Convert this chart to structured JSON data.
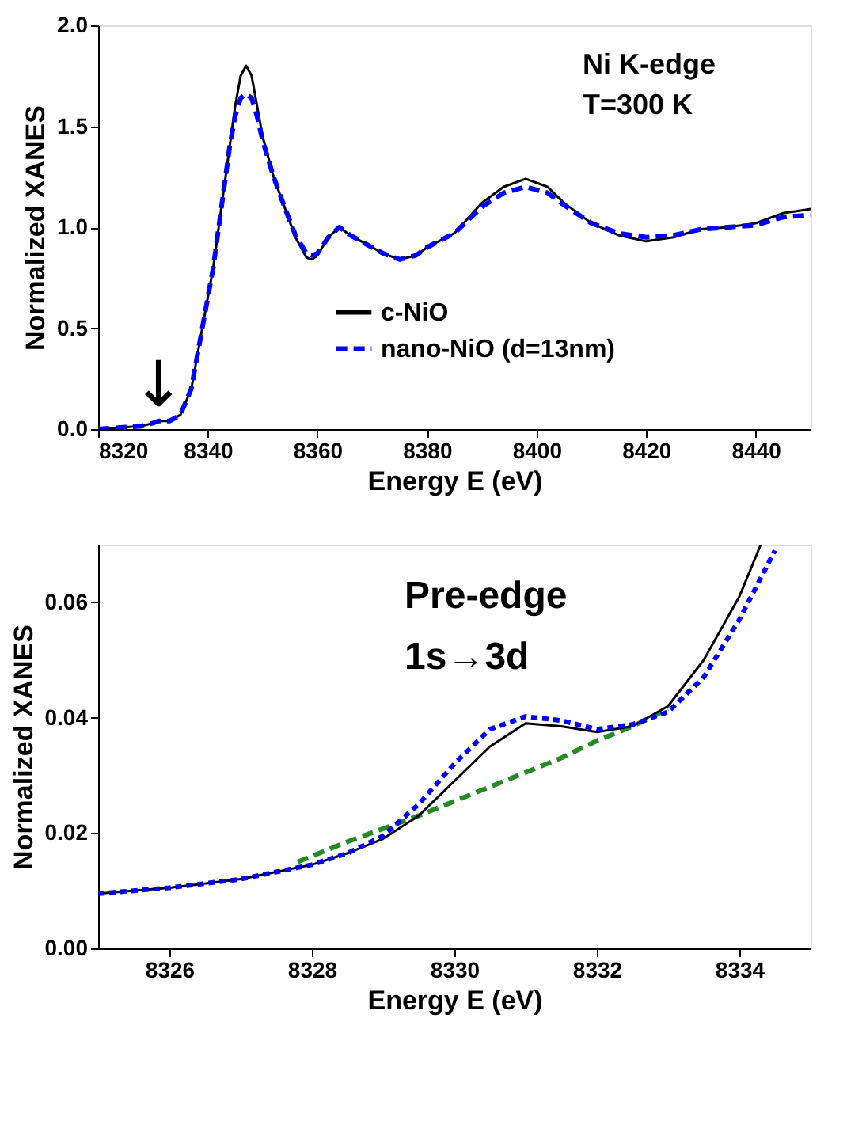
{
  "chart_data": [
    {
      "type": "line",
      "xlabel": "Energy E (eV)",
      "ylabel": "Normalized XANES",
      "xlim": [
        8320,
        8450
      ],
      "ylim": [
        0,
        2.0
      ],
      "xticks": [
        8320,
        8340,
        8360,
        8380,
        8400,
        8420,
        8440
      ],
      "yticks": [
        {
          "value": 0,
          "label": "0.0"
        },
        0.5,
        {
          "value": 1,
          "label": "1.0"
        },
        1.5,
        {
          "value": 2,
          "label": "2.0"
        }
      ],
      "grid": false,
      "legend": "bottom right",
      "annotations": [
        "Ni K-edge",
        "T=300 K",
        {
          "text": "↓",
          "x": 8331,
          "y": 0.05
        }
      ],
      "series": [
        {
          "name": "c-NiO",
          "color": "#000000",
          "line_style": "solid",
          "x": [
            8320,
            8325,
            8328,
            8330,
            8331,
            8333,
            8335,
            8337,
            8339,
            8341,
            8343,
            8344,
            8345,
            8346,
            8347,
            8348,
            8349,
            8350,
            8352,
            8354,
            8356,
            8358,
            8359,
            8360,
            8362,
            8364,
            8366,
            8368,
            8372,
            8375,
            8378,
            8380,
            8385,
            8390,
            8394,
            8398,
            8402,
            8405,
            8410,
            8415,
            8420,
            8425,
            8430,
            8435,
            8440,
            8445,
            8450
          ],
          "values": [
            0.0,
            0.01,
            0.015,
            0.03,
            0.04,
            0.04,
            0.07,
            0.2,
            0.5,
            0.8,
            1.2,
            1.4,
            1.6,
            1.75,
            1.8,
            1.75,
            1.6,
            1.45,
            1.25,
            1.1,
            0.95,
            0.85,
            0.84,
            0.86,
            0.95,
            1.0,
            0.96,
            0.93,
            0.87,
            0.84,
            0.86,
            0.9,
            0.97,
            1.12,
            1.2,
            1.24,
            1.2,
            1.12,
            1.02,
            0.96,
            0.93,
            0.95,
            0.99,
            1.0,
            1.02,
            1.07,
            1.09
          ]
        },
        {
          "name": "nano-NiO (d=13nm)",
          "color": "#0000ff",
          "line_style": "dashed",
          "x": [
            8320,
            8325,
            8328,
            8330,
            8331,
            8333,
            8335,
            8337,
            8339,
            8341,
            8343,
            8344,
            8345,
            8346,
            8347,
            8348,
            8349,
            8350,
            8352,
            8354,
            8356,
            8358,
            8359,
            8360,
            8362,
            8364,
            8366,
            8368,
            8372,
            8375,
            8378,
            8380,
            8385,
            8390,
            8394,
            8398,
            8402,
            8405,
            8410,
            8415,
            8420,
            8425,
            8430,
            8435,
            8440,
            8445,
            8450
          ],
          "values": [
            0.0,
            0.01,
            0.015,
            0.03,
            0.04,
            0.04,
            0.07,
            0.2,
            0.5,
            0.8,
            1.2,
            1.4,
            1.55,
            1.64,
            1.66,
            1.64,
            1.55,
            1.43,
            1.25,
            1.1,
            0.96,
            0.87,
            0.86,
            0.87,
            0.95,
            1.0,
            0.96,
            0.93,
            0.87,
            0.84,
            0.86,
            0.9,
            0.97,
            1.1,
            1.17,
            1.2,
            1.17,
            1.11,
            1.02,
            0.97,
            0.95,
            0.96,
            0.99,
            1.0,
            1.01,
            1.05,
            1.06
          ]
        }
      ]
    },
    {
      "type": "line",
      "xlabel": "Energy E (eV)",
      "ylabel": "Normalized XANES",
      "xlim": [
        8325,
        8335
      ],
      "ylim": [
        0,
        0.07
      ],
      "xticks": [
        8326,
        8328,
        8330,
        8332,
        8334
      ],
      "yticks": [
        {
          "value": 0,
          "label": "0.00"
        },
        0.02,
        0.04,
        0.06
      ],
      "grid": false,
      "annotations": [
        "Pre-edge",
        "1s→3d"
      ],
      "series": [
        {
          "color": "#228b22",
          "line_style": "dashed",
          "x": [
            8327.8,
            8328.5,
            8329.5,
            8330.5,
            8331.5,
            8332,
            8332.5,
            8333
          ],
          "values": [
            0.015,
            0.0185,
            0.023,
            0.028,
            0.033,
            0.036,
            0.0385,
            0.0415
          ]
        },
        {
          "color": "#000000",
          "line_style": "solid",
          "x": [
            8325,
            8326,
            8327,
            8328,
            8328.5,
            8329,
            8329.5,
            8330,
            8330.5,
            8331,
            8331.5,
            8332,
            8332.5,
            8333,
            8333.5,
            8334,
            8334.3
          ],
          "values": [
            0.0095,
            0.0105,
            0.012,
            0.0145,
            0.0165,
            0.019,
            0.023,
            0.029,
            0.035,
            0.039,
            0.0385,
            0.0375,
            0.0385,
            0.042,
            0.05,
            0.061,
            0.07
          ]
        },
        {
          "color": "#0000ff",
          "line_style": "dotted",
          "x": [
            8325,
            8326,
            8327,
            8328,
            8328.5,
            8329,
            8329.5,
            8330,
            8330.5,
            8331,
            8331.5,
            8332,
            8332.5,
            8333,
            8333.5,
            8334,
            8334.5
          ],
          "values": [
            0.0095,
            0.0105,
            0.012,
            0.0145,
            0.0165,
            0.0195,
            0.025,
            0.032,
            0.038,
            0.0402,
            0.0395,
            0.038,
            0.0388,
            0.041,
            0.047,
            0.057,
            0.069
          ]
        }
      ]
    }
  ]
}
